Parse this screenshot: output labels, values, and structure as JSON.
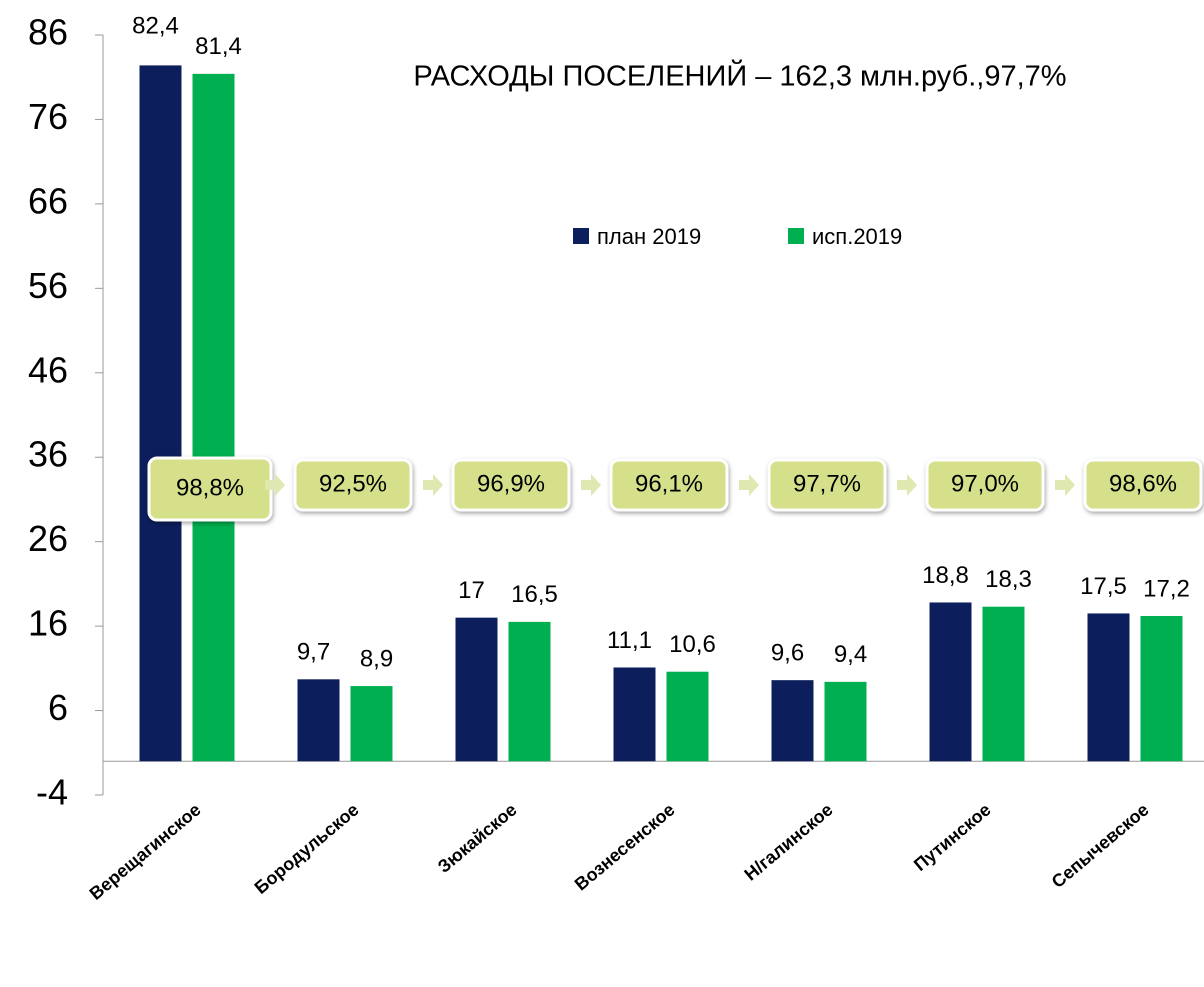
{
  "chart_data": {
    "type": "bar",
    "title": "РАСХОДЫ ПОСЕЛЕНИЙ – 162,3 млн.руб.,97,7%",
    "categories": [
      "Верещагинское",
      "Бородульское",
      "Зюкайское",
      "Вознесенское",
      "Н/галинское",
      "Путинское",
      "Сепычевское"
    ],
    "series": [
      {
        "name": "план 2019",
        "color": "#0c1f5c",
        "values": [
          82.4,
          9.7,
          17,
          11.1,
          9.6,
          18.8,
          17.5
        ],
        "value_labels": [
          "82,4",
          "9,7",
          "17",
          "11,1",
          "9,6",
          "18,8",
          "17,5"
        ]
      },
      {
        "name": "исп.2019",
        "color": "#00b050",
        "values": [
          81.4,
          8.9,
          16.5,
          10.6,
          9.4,
          18.3,
          17.2
        ],
        "value_labels": [
          "81,4",
          "8,9",
          "16,5",
          "10,6",
          "9,4",
          "18,3",
          "17,2"
        ]
      }
    ],
    "annotations": [
      "98,8%",
      "92,5%",
      "96,9%",
      "96,1%",
      "97,7%",
      "97,0%",
      "98,6%"
    ],
    "ylim": [
      -4,
      86
    ],
    "yticks": [
      -4,
      6,
      16,
      26,
      36,
      46,
      56,
      66,
      76,
      86
    ]
  }
}
